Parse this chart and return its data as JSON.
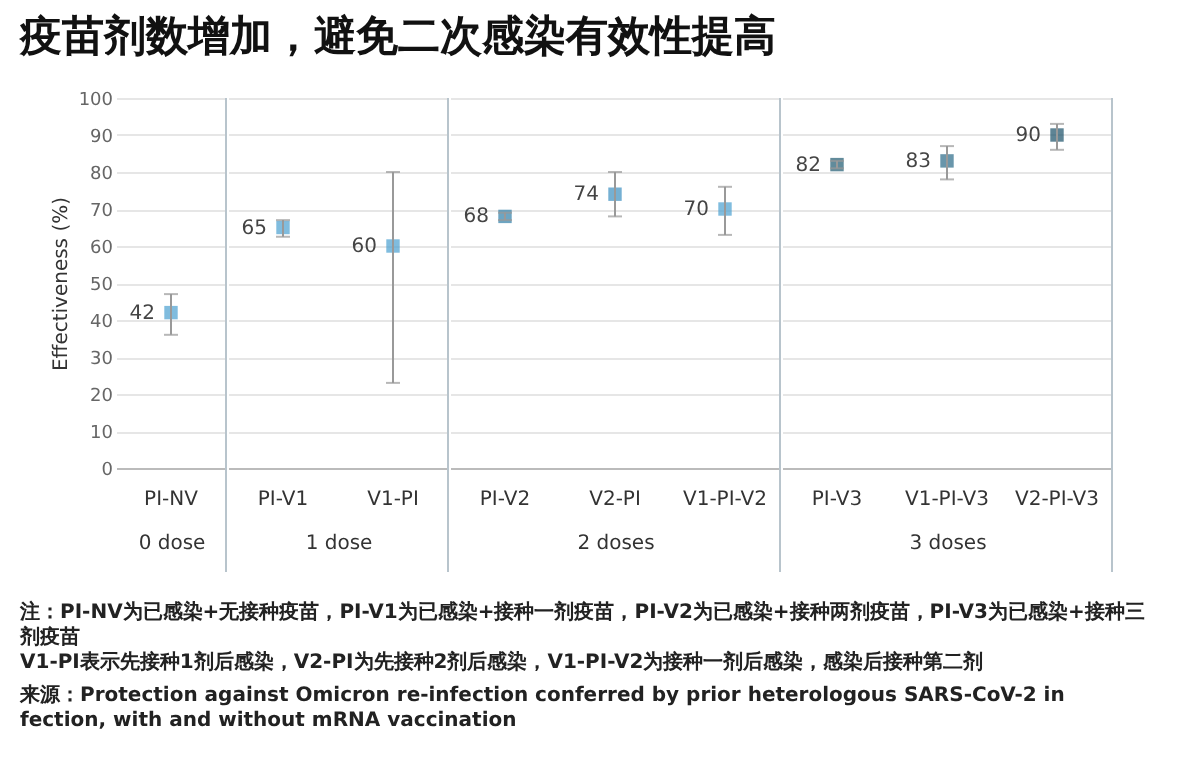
{
  "chart_data": [
    {
      "type": "scatter",
      "title": "疫苗剂数增加，避免二次感染有效性提高",
      "ylabel": "Effectiveness (%)",
      "xlabel": "0 dose",
      "categories": [
        "PI-NV"
      ],
      "values": [
        42
      ],
      "errors": [
        [
          36,
          47
        ]
      ],
      "colors": [
        "#4a9fd0"
      ],
      "data_labels": true,
      "marker": "square",
      "grid": "y",
      "ylim": [
        0,
        100
      ],
      "yticks": [
        0,
        10,
        20,
        30,
        40,
        50,
        60,
        70,
        80,
        90,
        100
      ],
      "annotations": [
        "注：PI-NV为已感染+无接种疫苗，PI-V1为已感染+接种一剂疫苗，PI-V2为已感染+接种两剂疫苗，PI-V3为已感染+接种三剂疫苗",
        "V1-PI表示先接种1剂后感染，V2-PI为先接种2剂后感染，V1-PI-V2为接种一剂后感染，感染后接种第二剂",
        "来源：Protection against Omicron re-infection conferred by prior heterologous SARS-CoV-2 infection, with and without mRNA vaccination"
      ]
    },
    {
      "type": "scatter",
      "xlabel": "1 dose",
      "categories": [
        "PI-V1",
        "V1-PI"
      ],
      "values": [
        65,
        60
      ],
      "errors": [
        [
          62.5,
          67
        ],
        [
          23,
          80
        ]
      ],
      "colors": [
        "#4a9fd0",
        "#4a9fd0"
      ],
      "data_labels": true,
      "marker": "square",
      "grid": "y",
      "ylim": [
        0,
        100
      ],
      "yticks": [
        0,
        10,
        20,
        30,
        40,
        50,
        60,
        70,
        80,
        90,
        100
      ],
      "tick_labels": "x"
    },
    {
      "type": "scatter",
      "xlabel": "2 doses",
      "categories": [
        "PI-V2",
        "V2-PI",
        "V1-PI-V2"
      ],
      "values": [
        68,
        74,
        70
      ],
      "errors": [
        [
          67,
          69
        ],
        [
          68,
          80
        ],
        [
          63,
          76
        ]
      ],
      "colors": [
        "#2f7fa8",
        "#3a8fc0",
        "#4aa0d0"
      ],
      "data_labels": true,
      "marker": "square",
      "grid": "y",
      "ylim": [
        0,
        100
      ],
      "yticks": [
        0,
        10,
        20,
        30,
        40,
        50,
        60,
        70,
        80,
        90,
        100
      ],
      "tick_labels": "x"
    },
    {
      "type": "scatter",
      "xlabel": "3 doses",
      "categories": [
        "PI-V3",
        "V1-PI-V3",
        "V2-PI-V3"
      ],
      "values": [
        82,
        83,
        90
      ],
      "errors": [
        [
          81,
          83
        ],
        [
          78,
          87
        ],
        [
          86,
          93
        ]
      ],
      "colors": [
        "#1e5a70",
        "#2a6a88",
        "#1a5068"
      ],
      "data_labels": true,
      "marker": "square",
      "grid": "y",
      "ylim": [
        0,
        100
      ],
      "yticks": [
        0,
        10,
        20,
        30,
        40,
        50,
        60,
        70,
        80,
        90,
        100
      ],
      "tick_labels": "x"
    }
  ]
}
